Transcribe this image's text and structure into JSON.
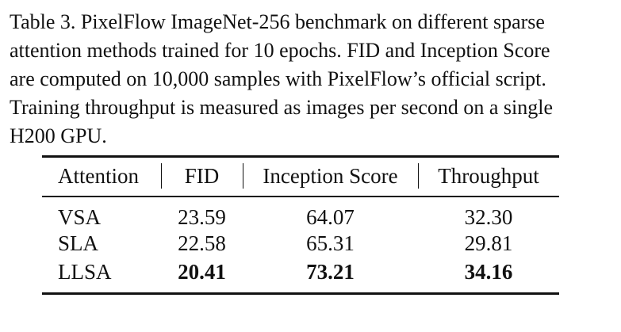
{
  "caption": {
    "lines": [
      "Table 3. PixelFlow ImageNet-256 benchmark on different sparse",
      "attention methods trained for 10 epochs. FID and Inception Score",
      "are computed on 10,000 samples with PixelFlow’s official script.",
      "Training throughput is measured as images per second on a single",
      "H200 GPU."
    ]
  },
  "table": {
    "headers": [
      "Attention",
      "FID",
      "Inception Score",
      "Throughput"
    ],
    "rows": [
      {
        "attention": "VSA",
        "fid": "23.59",
        "inception": "64.07",
        "throughput": "32.30"
      },
      {
        "attention": "SLA",
        "fid": "22.58",
        "inception": "65.31",
        "throughput": "29.81"
      },
      {
        "attention": "LLSA",
        "fid": "20.41",
        "inception": "73.21",
        "throughput": "34.16"
      }
    ]
  }
}
